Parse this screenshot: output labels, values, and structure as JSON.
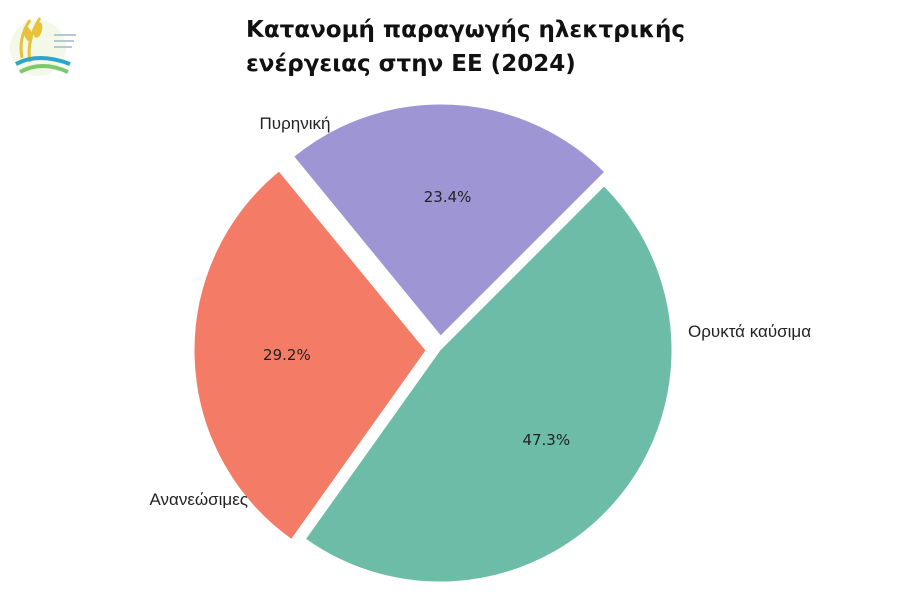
{
  "chart_data": {
    "type": "pie",
    "title": "Κατανομή παραγωγής ηλεκτρικής\nενέργειας στην ΕΕ (2024)",
    "slices": [
      {
        "name": "Πυρηνική",
        "value": 23.4,
        "percent_label": "23.4%",
        "color": "#9e95d4",
        "exploded": true
      },
      {
        "name": "Ορυκτά καύσιμα",
        "value": 29.2,
        "percent_label": "29.2%",
        "color": "#f47c66",
        "exploded": true
      },
      {
        "name": "Ανανεώσιμες",
        "value": 47.3,
        "percent_label": "47.3%",
        "color": "#6dbca7",
        "exploded": false
      }
    ],
    "legend": "none"
  },
  "logo": {
    "name": "logo-emblem",
    "colors": [
      "#e8c23a",
      "#2aa6c8",
      "#7cc86a"
    ]
  }
}
